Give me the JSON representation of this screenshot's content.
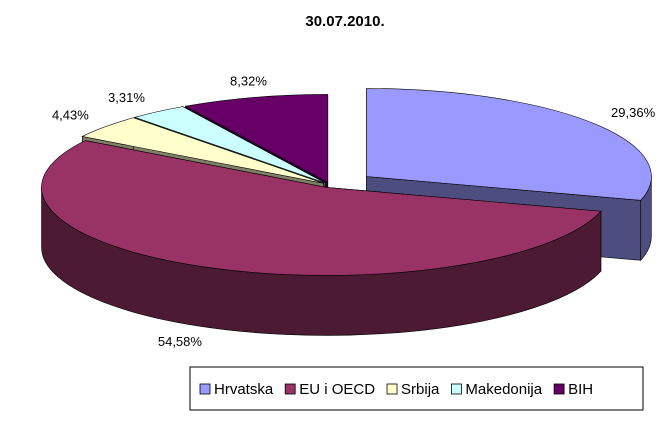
{
  "chart_data": {
    "type": "pie3d",
    "title": "30.07.2010.",
    "categories": [
      "Hrvatska",
      "EU i OECD",
      "Srbija",
      "Makedonija",
      "BIH"
    ],
    "values": [
      29.36,
      54.58,
      4.43,
      3.31,
      8.32
    ],
    "value_labels": [
      "29,36%",
      "54,58%",
      "4,43%",
      "3,31%",
      "8,32%"
    ],
    "colors": [
      "#9999ff",
      "#993366",
      "#ffffcc",
      "#ccffff",
      "#660066"
    ],
    "legend": "bottom"
  }
}
